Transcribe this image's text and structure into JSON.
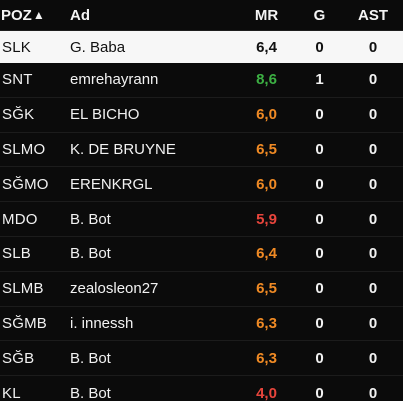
{
  "header": {
    "pos": "POZ",
    "sort_arrow": "▲",
    "name": "Ad",
    "mr": "MR",
    "g": "G",
    "ast": "AST"
  },
  "colors": {
    "green": "#3cb043",
    "orange": "#f08a24",
    "red": "#e8453c",
    "highlight_bg": "#f7f7f7"
  },
  "rows": [
    {
      "pos": "SLK",
      "name": "G. Baba",
      "mr": "6,4",
      "mr_color": "#111111",
      "g": "0",
      "ast": "0",
      "highlight": true
    },
    {
      "pos": "SNT",
      "name": "emrehayrann",
      "mr": "8,6",
      "mr_color": "#3cb043",
      "g": "1",
      "ast": "0"
    },
    {
      "pos": "SĞK",
      "name": "EL BICHO",
      "mr": "6,0",
      "mr_color": "#f08a24",
      "g": "0",
      "ast": "0"
    },
    {
      "pos": "SLMO",
      "name": "K. DE BRUYNE",
      "mr": "6,5",
      "mr_color": "#f08a24",
      "g": "0",
      "ast": "0"
    },
    {
      "pos": "SĞMO",
      "name": "ERENKRGL",
      "mr": "6,0",
      "mr_color": "#f08a24",
      "g": "0",
      "ast": "0"
    },
    {
      "pos": "MDO",
      "name": "B. Bot",
      "mr": "5,9",
      "mr_color": "#e8453c",
      "g": "0",
      "ast": "0"
    },
    {
      "pos": "SLB",
      "name": "B. Bot",
      "mr": "6,4",
      "mr_color": "#f08a24",
      "g": "0",
      "ast": "0"
    },
    {
      "pos": "SLMB",
      "name": "zealosleon27",
      "mr": "6,5",
      "mr_color": "#f08a24",
      "g": "0",
      "ast": "0"
    },
    {
      "pos": "SĞMB",
      "name": "i. innessh",
      "mr": "6,3",
      "mr_color": "#f08a24",
      "g": "0",
      "ast": "0"
    },
    {
      "pos": "SĞB",
      "name": "B. Bot",
      "mr": "6,3",
      "mr_color": "#f08a24",
      "g": "0",
      "ast": "0"
    },
    {
      "pos": "KL",
      "name": "B. Bot",
      "mr": "4,0",
      "mr_color": "#e8453c",
      "g": "0",
      "ast": "0"
    }
  ]
}
